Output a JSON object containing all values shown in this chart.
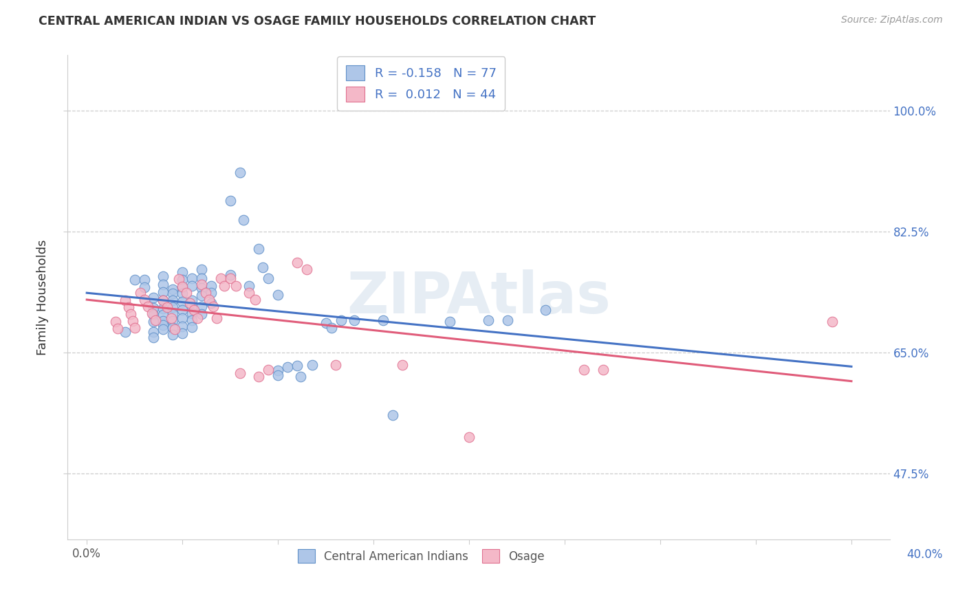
{
  "title": "CENTRAL AMERICAN INDIAN VS OSAGE FAMILY HOUSEHOLDS CORRELATION CHART",
  "source": "Source: ZipAtlas.com",
  "ylabel": "Family Households",
  "ytick_labels": [
    "100.0%",
    "82.5%",
    "65.0%",
    "47.5%"
  ],
  "ytick_values": [
    1.0,
    0.825,
    0.65,
    0.475
  ],
  "legend_blue_r": "R = -0.158",
  "legend_blue_n": "N = 77",
  "legend_pink_r": "R =  0.012",
  "legend_pink_n": "N = 44",
  "watermark": "ZIPAtlas",
  "blue_color": "#aec6e8",
  "pink_color": "#f4b8c8",
  "blue_edge_color": "#6090c8",
  "pink_edge_color": "#e07090",
  "blue_line_color": "#4472c4",
  "pink_line_color": "#e05c7a",
  "blue_scatter": [
    [
      0.02,
      0.68
    ],
    [
      0.025,
      0.755
    ],
    [
      0.03,
      0.755
    ],
    [
      0.03,
      0.745
    ],
    [
      0.035,
      0.73
    ],
    [
      0.035,
      0.715
    ],
    [
      0.035,
      0.705
    ],
    [
      0.035,
      0.695
    ],
    [
      0.035,
      0.68
    ],
    [
      0.035,
      0.672
    ],
    [
      0.04,
      0.76
    ],
    [
      0.04,
      0.748
    ],
    [
      0.04,
      0.738
    ],
    [
      0.04,
      0.726
    ],
    [
      0.04,
      0.714
    ],
    [
      0.04,
      0.705
    ],
    [
      0.04,
      0.696
    ],
    [
      0.04,
      0.69
    ],
    [
      0.04,
      0.684
    ],
    [
      0.045,
      0.742
    ],
    [
      0.045,
      0.736
    ],
    [
      0.045,
      0.726
    ],
    [
      0.045,
      0.716
    ],
    [
      0.045,
      0.706
    ],
    [
      0.045,
      0.696
    ],
    [
      0.045,
      0.686
    ],
    [
      0.045,
      0.676
    ],
    [
      0.05,
      0.766
    ],
    [
      0.05,
      0.755
    ],
    [
      0.05,
      0.745
    ],
    [
      0.05,
      0.736
    ],
    [
      0.05,
      0.724
    ],
    [
      0.05,
      0.712
    ],
    [
      0.05,
      0.7
    ],
    [
      0.05,
      0.688
    ],
    [
      0.05,
      0.678
    ],
    [
      0.055,
      0.757
    ],
    [
      0.055,
      0.747
    ],
    [
      0.055,
      0.726
    ],
    [
      0.055,
      0.717
    ],
    [
      0.055,
      0.707
    ],
    [
      0.055,
      0.697
    ],
    [
      0.055,
      0.687
    ],
    [
      0.06,
      0.77
    ],
    [
      0.06,
      0.757
    ],
    [
      0.06,
      0.744
    ],
    [
      0.06,
      0.733
    ],
    [
      0.06,
      0.717
    ],
    [
      0.06,
      0.706
    ],
    [
      0.065,
      0.747
    ],
    [
      0.065,
      0.737
    ],
    [
      0.065,
      0.722
    ],
    [
      0.075,
      0.87
    ],
    [
      0.075,
      0.762
    ],
    [
      0.08,
      0.91
    ],
    [
      0.082,
      0.842
    ],
    [
      0.085,
      0.747
    ],
    [
      0.09,
      0.8
    ],
    [
      0.092,
      0.773
    ],
    [
      0.095,
      0.757
    ],
    [
      0.1,
      0.734
    ],
    [
      0.1,
      0.624
    ],
    [
      0.1,
      0.617
    ],
    [
      0.105,
      0.629
    ],
    [
      0.11,
      0.631
    ],
    [
      0.112,
      0.615
    ],
    [
      0.118,
      0.632
    ],
    [
      0.125,
      0.693
    ],
    [
      0.128,
      0.686
    ],
    [
      0.133,
      0.697
    ],
    [
      0.14,
      0.697
    ],
    [
      0.155,
      0.697
    ],
    [
      0.16,
      0.56
    ],
    [
      0.19,
      0.695
    ],
    [
      0.21,
      0.697
    ],
    [
      0.22,
      0.697
    ],
    [
      0.24,
      0.712
    ]
  ],
  "pink_scatter": [
    [
      0.015,
      0.695
    ],
    [
      0.016,
      0.685
    ],
    [
      0.02,
      0.726
    ],
    [
      0.022,
      0.716
    ],
    [
      0.023,
      0.706
    ],
    [
      0.024,
      0.696
    ],
    [
      0.025,
      0.686
    ],
    [
      0.028,
      0.737
    ],
    [
      0.03,
      0.727
    ],
    [
      0.032,
      0.717
    ],
    [
      0.034,
      0.707
    ],
    [
      0.036,
      0.697
    ],
    [
      0.04,
      0.726
    ],
    [
      0.042,
      0.716
    ],
    [
      0.044,
      0.7
    ],
    [
      0.046,
      0.684
    ],
    [
      0.048,
      0.756
    ],
    [
      0.05,
      0.746
    ],
    [
      0.052,
      0.737
    ],
    [
      0.054,
      0.722
    ],
    [
      0.056,
      0.712
    ],
    [
      0.058,
      0.7
    ],
    [
      0.06,
      0.748
    ],
    [
      0.062,
      0.737
    ],
    [
      0.064,
      0.727
    ],
    [
      0.066,
      0.717
    ],
    [
      0.068,
      0.7
    ],
    [
      0.07,
      0.757
    ],
    [
      0.072,
      0.747
    ],
    [
      0.075,
      0.757
    ],
    [
      0.078,
      0.747
    ],
    [
      0.08,
      0.62
    ],
    [
      0.085,
      0.737
    ],
    [
      0.088,
      0.727
    ],
    [
      0.09,
      0.615
    ],
    [
      0.095,
      0.625
    ],
    [
      0.11,
      0.78
    ],
    [
      0.115,
      0.77
    ],
    [
      0.13,
      0.632
    ],
    [
      0.165,
      0.632
    ],
    [
      0.2,
      0.528
    ],
    [
      0.26,
      0.625
    ],
    [
      0.27,
      0.625
    ],
    [
      0.39,
      0.695
    ]
  ],
  "xlim": [
    -0.01,
    0.42
  ],
  "ylim": [
    0.38,
    1.08
  ],
  "xtick_positions": [
    0.0,
    0.05,
    0.1,
    0.15,
    0.2,
    0.25,
    0.3,
    0.35,
    0.4
  ],
  "figsize": [
    14.06,
    8.92
  ],
  "dpi": 100
}
